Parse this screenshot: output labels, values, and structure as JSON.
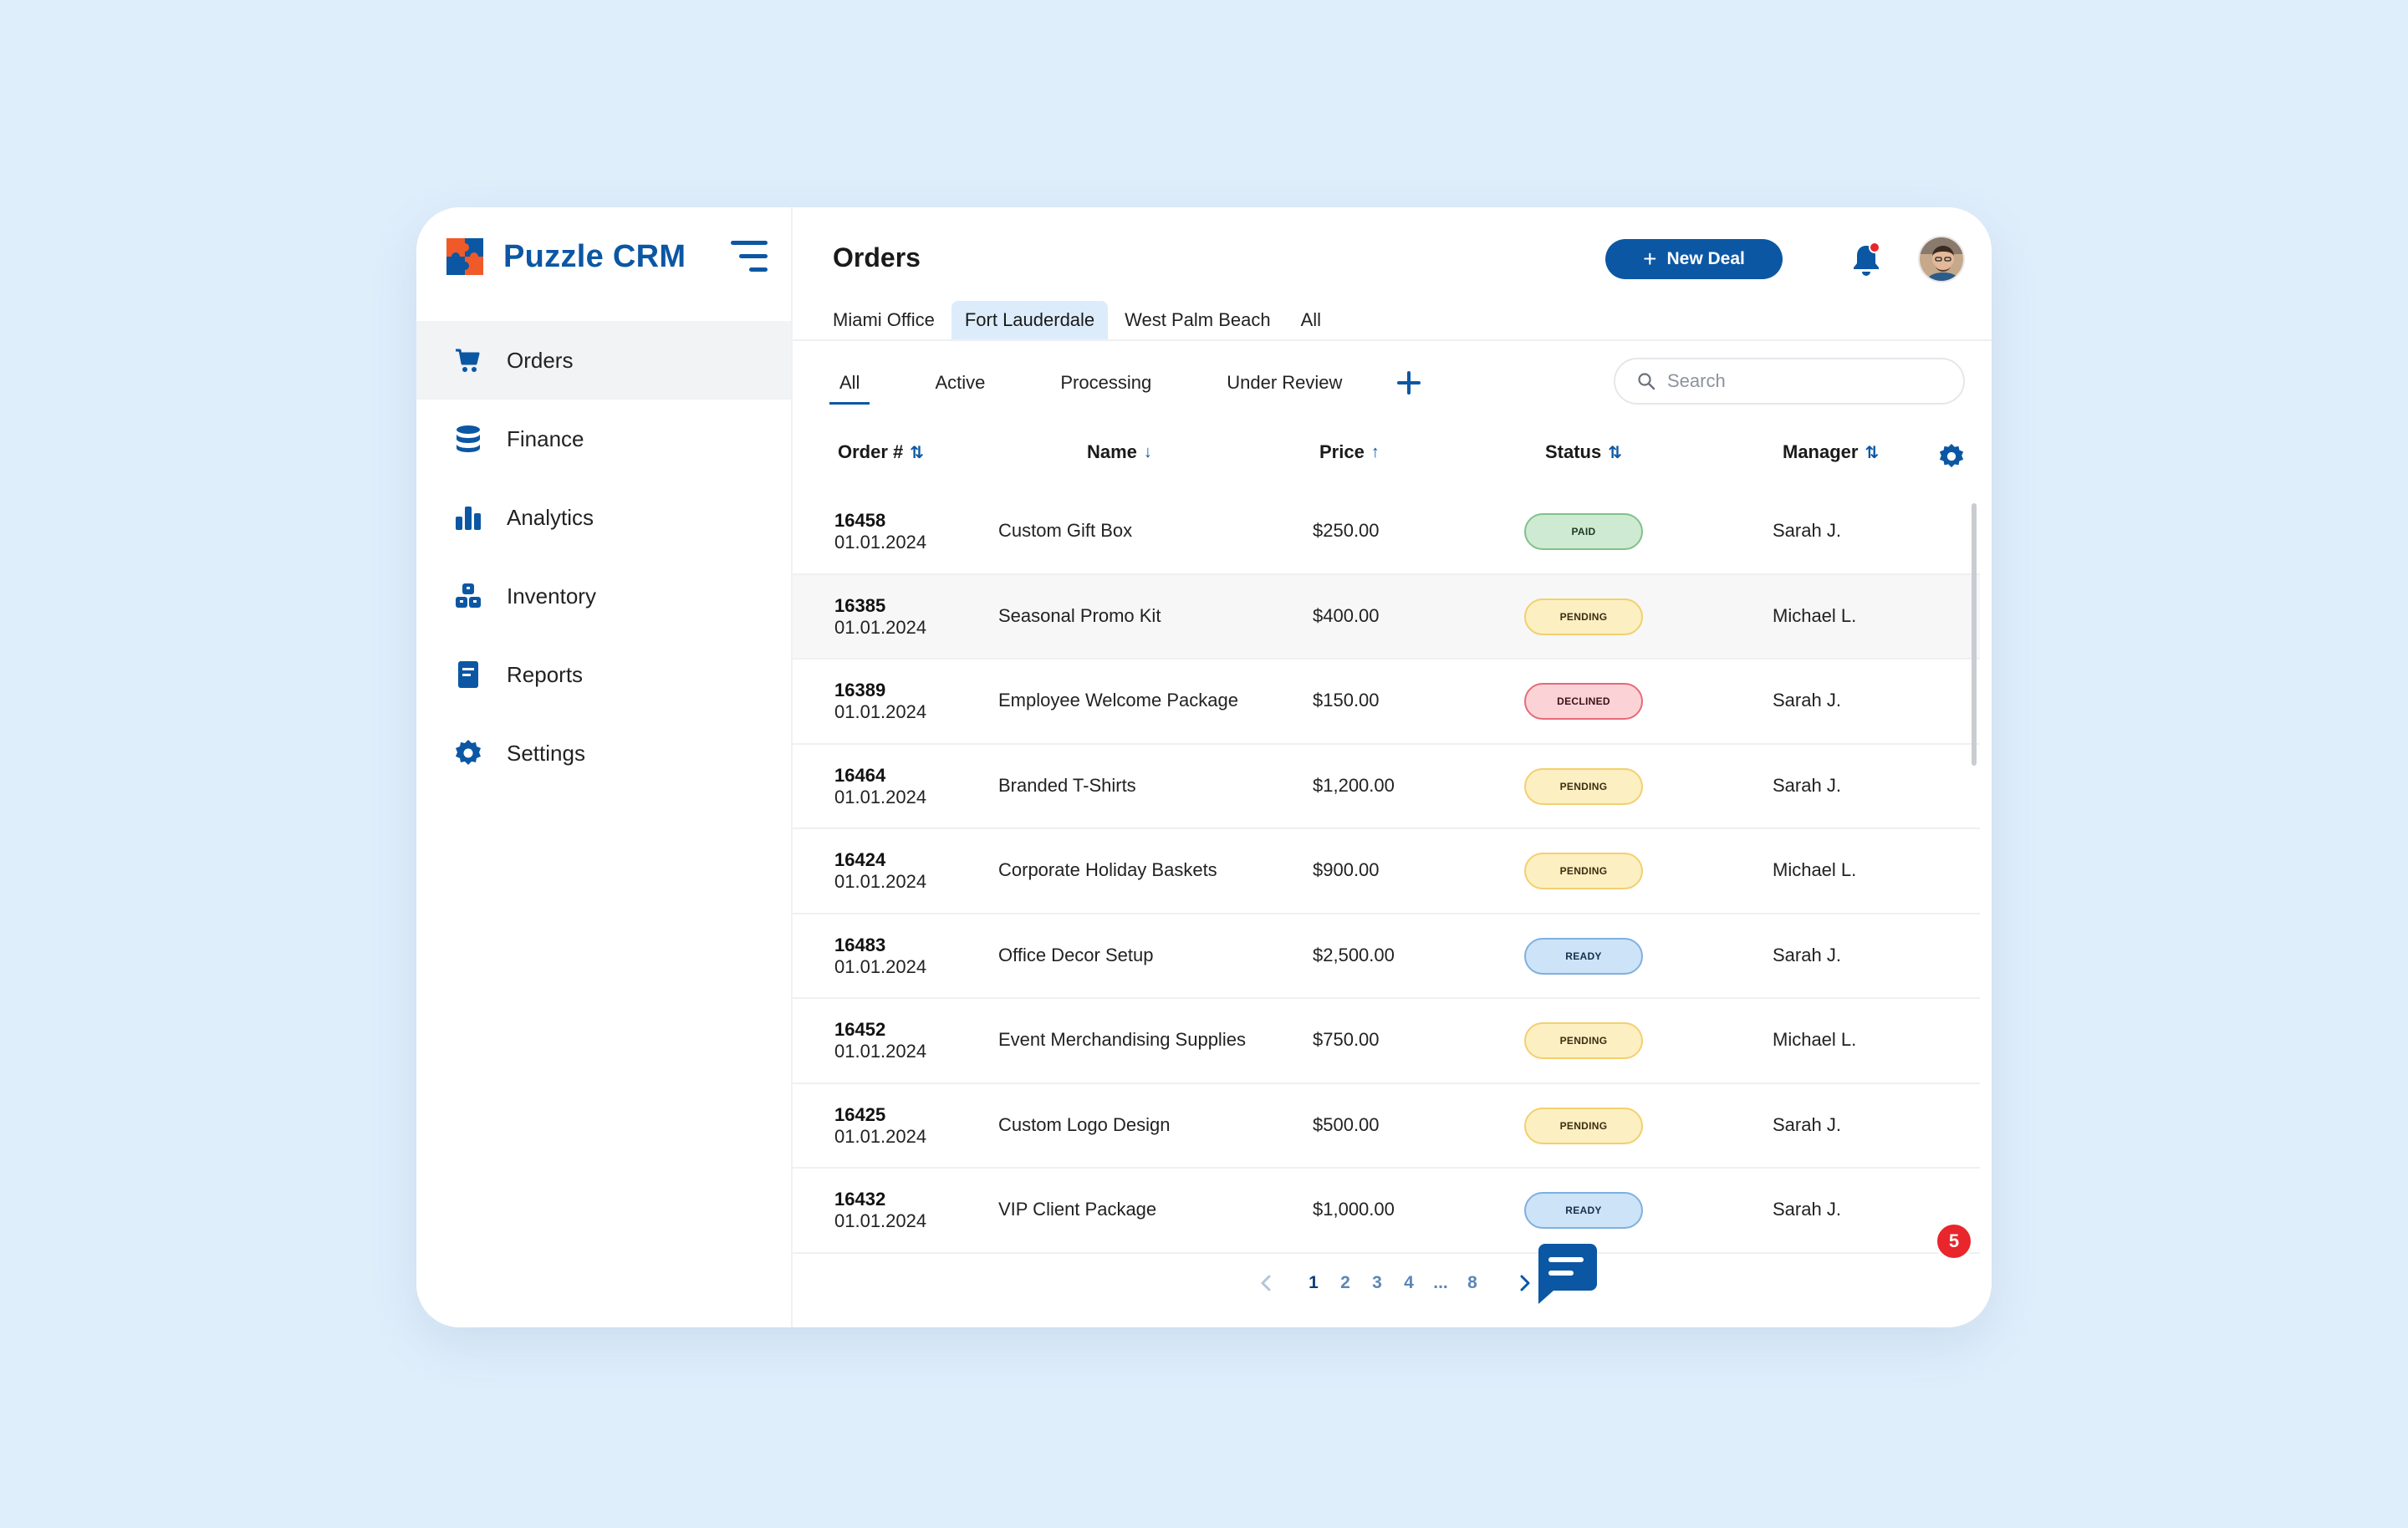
{
  "app": {
    "brand": "Puzzle CRM"
  },
  "sidebar": {
    "items": [
      {
        "label": "Orders",
        "icon": "cart-icon",
        "active": true
      },
      {
        "label": "Finance",
        "icon": "database-icon"
      },
      {
        "label": "Analytics",
        "icon": "bar-chart-icon"
      },
      {
        "label": "Inventory",
        "icon": "boxes-icon"
      },
      {
        "label": "Reports",
        "icon": "document-icon"
      },
      {
        "label": "Settings",
        "icon": "gear-icon"
      }
    ]
  },
  "header": {
    "title": "Orders",
    "new_deal_label": "New Deal",
    "notifications_dot_color": "#e8262b"
  },
  "office_tabs": [
    "Miami Office",
    "Fort Lauderdale",
    "West Palm Beach",
    "All"
  ],
  "office_tabs_active": "Fort Lauderdale",
  "status_tabs": [
    "All",
    "Active",
    "Processing",
    "Under Review"
  ],
  "status_tabs_active": "All",
  "search": {
    "placeholder": "Search",
    "value": ""
  },
  "table": {
    "headers": {
      "order": "Order #",
      "name": "Name",
      "price": "Price",
      "status": "Status",
      "manager": "Manager"
    },
    "sort_icons": {
      "order": "⇅",
      "name": "↓",
      "price": "↑",
      "status": "⇅",
      "manager": "⇅"
    },
    "rows": [
      {
        "order": "16458",
        "date": "01.01.2024",
        "name": "Custom Gift Box",
        "price": "$250.00",
        "status": "PAID",
        "status_kind": "paid",
        "manager": "Sarah J."
      },
      {
        "order": "16385",
        "date": "01.01.2024",
        "name": "Seasonal Promo Kit",
        "price": "$400.00",
        "status": "PENDING",
        "status_kind": "pending",
        "manager": "Michael L."
      },
      {
        "order": "16389",
        "date": "01.01.2024",
        "name": "Employee Welcome Package",
        "price": "$150.00",
        "status": "DECLINED",
        "status_kind": "declined",
        "manager": "Sarah J."
      },
      {
        "order": "16464",
        "date": "01.01.2024",
        "name": "Branded T-Shirts",
        "price": "$1,200.00",
        "status": "PENDING",
        "status_kind": "pending",
        "manager": "Sarah J."
      },
      {
        "order": "16424",
        "date": "01.01.2024",
        "name": "Corporate Holiday Baskets",
        "price": "$900.00",
        "status": "PENDING",
        "status_kind": "pending",
        "manager": "Michael L."
      },
      {
        "order": "16483",
        "date": "01.01.2024",
        "name": "Office Decor Setup",
        "price": "$2,500.00",
        "status": "READY",
        "status_kind": "ready",
        "manager": "Sarah J."
      },
      {
        "order": "16452",
        "date": "01.01.2024",
        "name": "Event Merchandising Supplies",
        "price": "$750.00",
        "status": "PENDING",
        "status_kind": "pending",
        "manager": "Michael L."
      },
      {
        "order": "16425",
        "date": "01.01.2024",
        "name": "Custom Logo Design",
        "price": "$500.00",
        "status": "PENDING",
        "status_kind": "pending",
        "manager": "Sarah J."
      },
      {
        "order": "16432",
        "date": "01.01.2024",
        "name": "VIP Client Package",
        "price": "$1,000.00",
        "status": "READY",
        "status_kind": "ready",
        "manager": "Sarah J."
      }
    ]
  },
  "pagination": {
    "pages": [
      "1",
      "2",
      "3",
      "4",
      "...",
      "8"
    ],
    "current": "1"
  },
  "chat": {
    "badge": "5"
  },
  "colors": {
    "accent": "#0b57a4",
    "background": "#dfeefb"
  }
}
